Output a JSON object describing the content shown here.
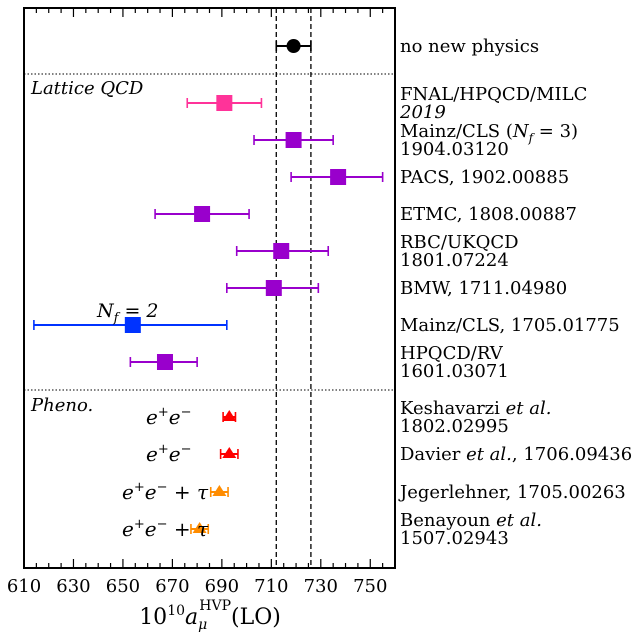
{
  "chart_data": {
    "type": "forest",
    "xlabel_main": "10",
    "xlabel_exp": "10",
    "xlabel_a": "a",
    "xlabel_sub": "μ",
    "xlabel_sup": "HVP",
    "xlabel_tail": "(LO)",
    "xlim": [
      610,
      760
    ],
    "xticks": [
      610,
      630,
      650,
      670,
      690,
      710,
      730,
      750
    ],
    "band": [
      712,
      726
    ],
    "sections": [
      {
        "label": "Lattice QCD",
        "style": "italic"
      },
      {
        "label": "Pheno.",
        "style": "italic"
      }
    ],
    "entries": [
      {
        "label": "no new physics",
        "value": 719,
        "err_lo": 7,
        "err_hi": 7,
        "marker": "circle",
        "color": "#000000",
        "row": 0
      },
      {
        "label": "FNAL/HPQCD/MILC",
        "label2": "2019",
        "label2_italic": true,
        "value": 691,
        "err_lo": 15,
        "err_hi": 15,
        "marker": "square",
        "color": "#ff3399",
        "row": 1
      },
      {
        "label": "Mainz/CLS (N_f = 3)",
        "label2": "1904.03120",
        "value": 719,
        "err_lo": 16,
        "err_hi": 16,
        "marker": "square",
        "color": "#9900cc",
        "row": 2
      },
      {
        "label": "PACS, 1902.00885",
        "value": 737,
        "err_lo": 19,
        "err_hi": 18,
        "marker": "square",
        "color": "#9900cc",
        "row": 3
      },
      {
        "label": "ETMC, 1808.00887",
        "value": 682,
        "err_lo": 19,
        "err_hi": 19,
        "marker": "square",
        "color": "#9900cc",
        "row": 4
      },
      {
        "label": "RBC/UKQCD",
        "label2": "1801.07224",
        "value": 714,
        "err_lo": 18,
        "err_hi": 19,
        "marker": "square",
        "color": "#9900cc",
        "row": 5
      },
      {
        "label": "BMW, 1711.04980",
        "value": 711,
        "err_lo": 19,
        "err_hi": 18,
        "marker": "square",
        "color": "#9900cc",
        "row": 6
      },
      {
        "label": "Mainz/CLS, 1705.01775",
        "value": 654,
        "err_lo": 40,
        "err_hi": 38,
        "marker": "square",
        "color": "#0033ff",
        "row": 7,
        "note": "N_f = 2"
      },
      {
        "label": "HPQCD/RV",
        "label2": "1601.03071",
        "value": 667,
        "err_lo": 14,
        "err_hi": 13,
        "marker": "square",
        "color": "#9900cc",
        "row": 8
      },
      {
        "label": "Keshavarzi et al.",
        "label2": "1802.02995",
        "value": 693,
        "err_lo": 2.5,
        "err_hi": 2.5,
        "marker": "triangle",
        "color": "#ff0000",
        "row": 9,
        "process": "e+e−"
      },
      {
        "label": "Davier et al., 1706.09436",
        "value": 693,
        "err_lo": 3.5,
        "err_hi": 3.5,
        "marker": "triangle",
        "color": "#ff0000",
        "row": 10,
        "process": "e+e−"
      },
      {
        "label": "Jegerlehner, 1705.00263",
        "value": 689,
        "err_lo": 3.5,
        "err_hi": 3.5,
        "marker": "triangle",
        "color": "#ff8c00",
        "row": 11,
        "process": "e+e− + τ"
      },
      {
        "label": "Benayoun et al.",
        "label2": "1507.02943",
        "value": 681,
        "err_lo": 3.5,
        "err_hi": 3.5,
        "marker": "triangle",
        "color": "#ff8c00",
        "row": 12,
        "process": "e+e− + τ"
      }
    ]
  }
}
